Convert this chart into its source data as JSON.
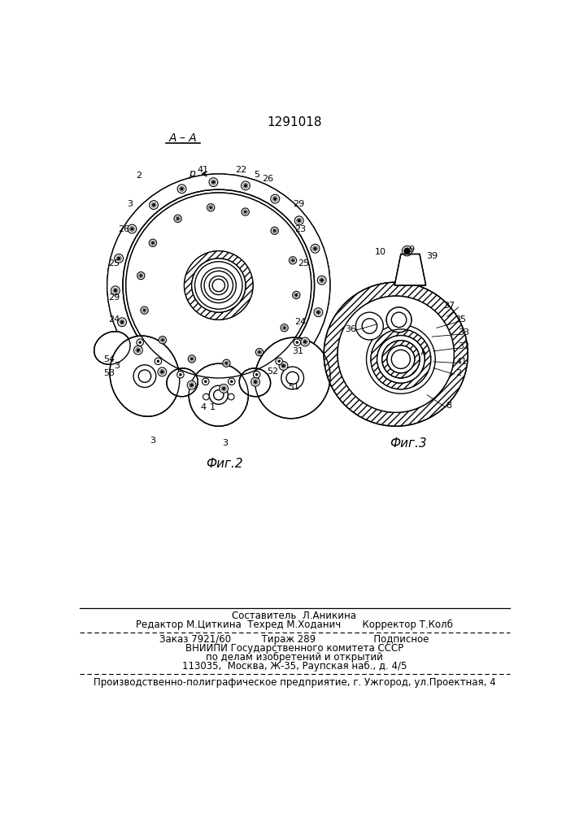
{
  "title": "1291018",
  "fig2_label": "Фиг.2",
  "fig3_label": "Фиг.3",
  "section_label": "A – A",
  "footer_line1": "Составитель  Л.Аникина",
  "footer_line2": "Редактор М.Циткина  Техред М.Ходанич       Корректор Т.Колб",
  "footer_line3": "Заказ 7921/60          Тираж 289                   Подписное",
  "footer_line4": "ВНИИПИ Государственного комитета СССР",
  "footer_line5": "по делам изобретений и открытий",
  "footer_line6": "113035,  Москва, Ж-35, Раупская наб., д. 4/5",
  "footer_line7": "Производственно-полиграфическое предприятие, г. Ужгород, ул.Проектная, 4",
  "bg_color": "#ffffff"
}
